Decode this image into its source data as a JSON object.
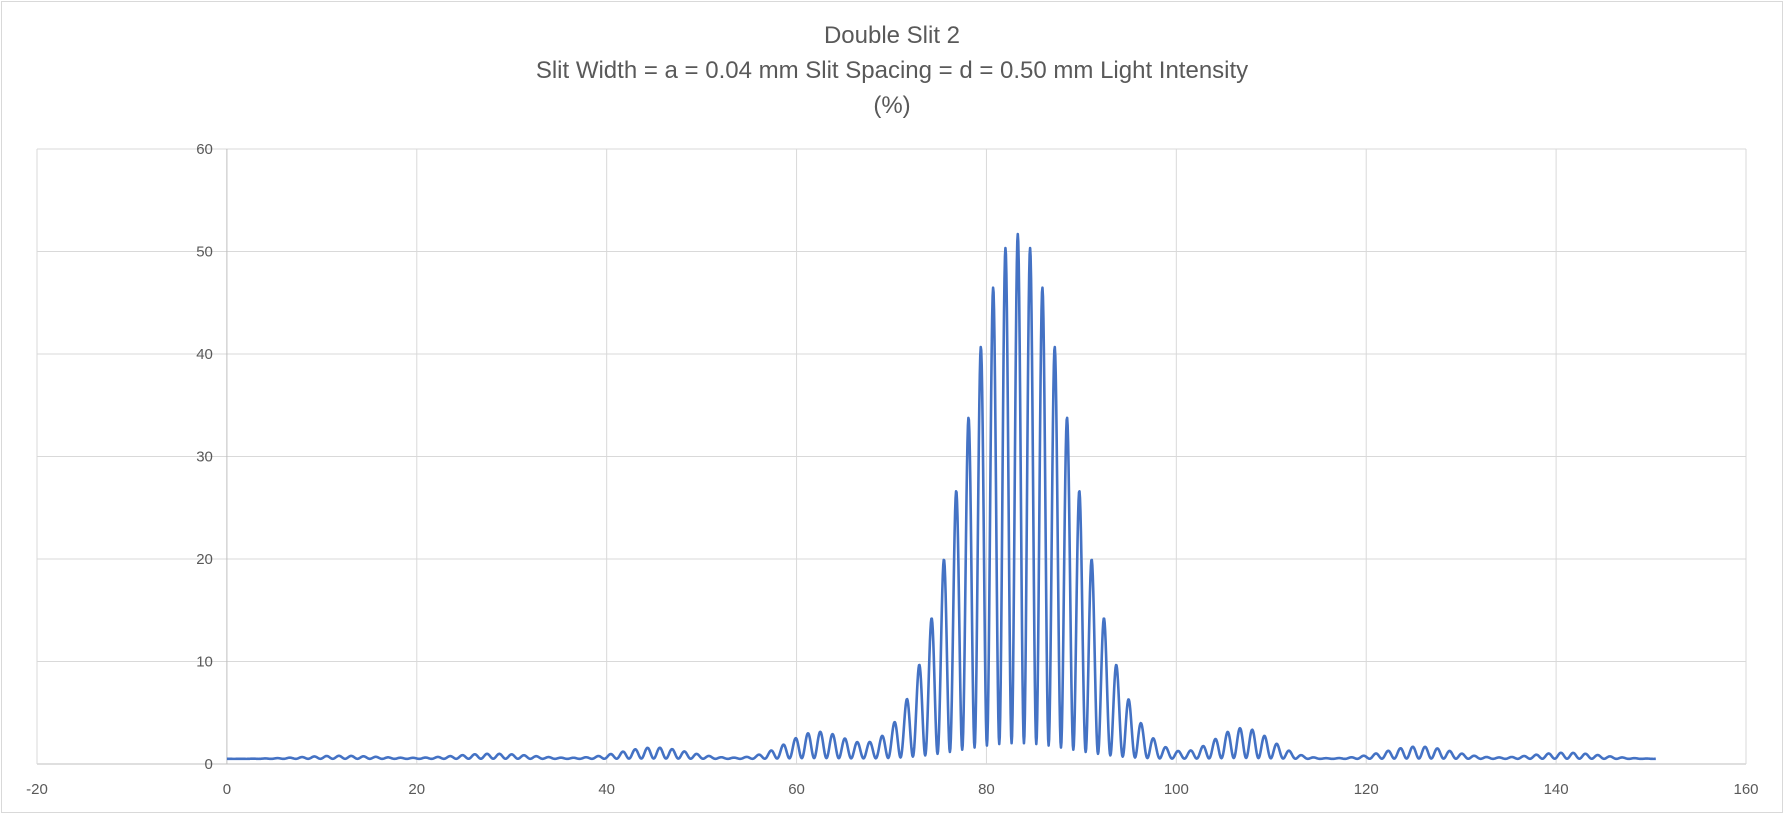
{
  "chart_data": {
    "type": "line",
    "title": "Double Slit 2",
    "subtitle_line_1": "Slit Width = a = 0.04 mm Slit Spacing = d = 0.50 mm Light Intensity",
    "subtitle_line_2": "(%)",
    "xlabel": "",
    "ylabel": "",
    "xlim": [
      -20,
      160
    ],
    "ylim": [
      0,
      60
    ],
    "x_ticks": [
      -20,
      0,
      20,
      40,
      60,
      80,
      100,
      120,
      140,
      160
    ],
    "y_ticks": [
      0,
      10,
      20,
      30,
      40,
      50,
      60
    ],
    "grid": true,
    "legend": "none",
    "series": [
      {
        "color": "#4472c4",
        "x_start": 0,
        "x_end": 150.5,
        "baseline": 0.5,
        "fringe_period": 1.3,
        "fringe_phase_x": 83.3,
        "central_envelope": {
          "center": 83.3,
          "peak": 51.2,
          "sigma": 5.6
        },
        "side_lobes": [
          {
            "center": 62.2,
            "peak": 2.6,
            "sigma": 3.2
          },
          {
            "center": 107.0,
            "peak": 3.0,
            "sigma": 3.0
          },
          {
            "center": 45.0,
            "peak": 1.1,
            "sigma": 3.5
          },
          {
            "center": 125.5,
            "peak": 1.2,
            "sigma": 3.5
          },
          {
            "center": 28.0,
            "peak": 0.5,
            "sigma": 4.0
          },
          {
            "center": 141.0,
            "peak": 0.6,
            "sigma": 3.5
          },
          {
            "center": 12.0,
            "peak": 0.3,
            "sigma": 4.0
          }
        ]
      }
    ]
  }
}
